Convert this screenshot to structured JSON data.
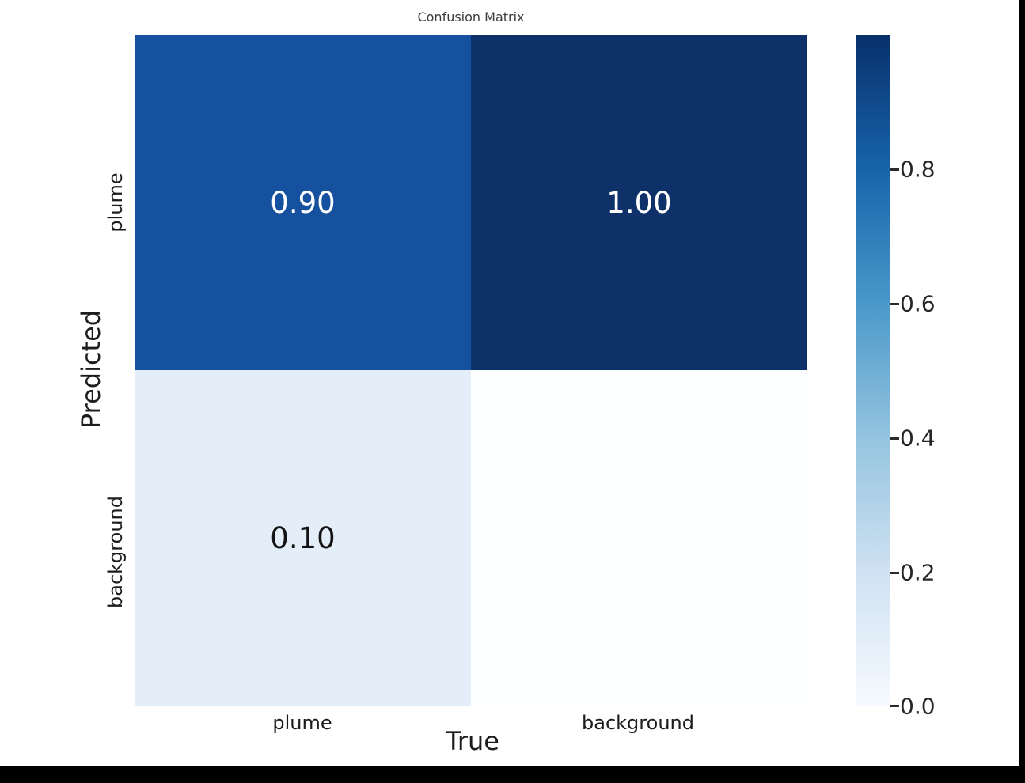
{
  "title": "Confusion Matrix",
  "x_axis": {
    "label": "True",
    "tick_labels": [
      "plume",
      "background"
    ]
  },
  "y_axis": {
    "label": "Predicted",
    "tick_labels": [
      "plume",
      "background"
    ]
  },
  "matrix": {
    "cells": [
      {
        "row": "plume",
        "col": "plume",
        "value": "0.90"
      },
      {
        "row": "plume",
        "col": "background",
        "value": "1.00"
      },
      {
        "row": "background",
        "col": "plume",
        "value": "0.10"
      },
      {
        "row": "background",
        "col": "background",
        "value": ""
      }
    ]
  },
  "colorbar": {
    "tick_labels": [
      "0.8",
      "0.6",
      "0.4",
      "0.2",
      "0.0"
    ],
    "colormap": "Blues",
    "min": 0.0,
    "max": 1.0
  },
  "colors": {
    "cell_plume_plume": "#15519e",
    "cell_plume_background": "#0e3169",
    "cell_background_plume": "#e4eef8",
    "cell_background_background": "#fdfeff",
    "colormap_high": "#08306b",
    "colormap_low": "#f7fbff",
    "title_text": "#3a3a3a",
    "tick_text": "#262626",
    "border_bars": "#000000"
  },
  "chart_data": {
    "type": "heatmap",
    "title": "Confusion Matrix",
    "xlabel": "True",
    "ylabel": "Predicted",
    "x_categories": [
      "plume",
      "background"
    ],
    "y_categories": [
      "plume",
      "background"
    ],
    "values": [
      [
        0.9,
        1.0
      ],
      [
        0.1,
        0.0
      ]
    ],
    "annotations": [
      [
        "0.90",
        "1.00"
      ],
      [
        "0.10",
        ""
      ]
    ],
    "colormap": "Blues",
    "colorbar_range": [
      0,
      1
    ],
    "colorbar_ticks": [
      0.0,
      0.2,
      0.4,
      0.6,
      0.8
    ],
    "legend_position": "right-colorbar",
    "grid": false
  }
}
